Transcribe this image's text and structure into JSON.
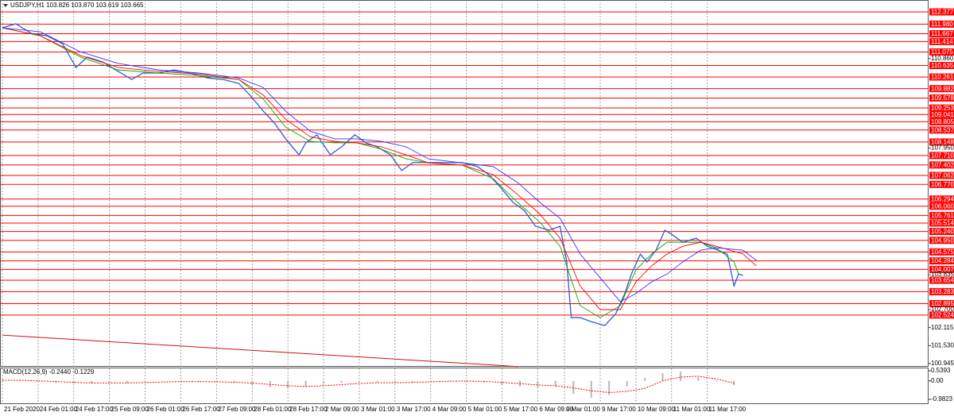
{
  "chart_data": [
    {
      "type": "line",
      "title": "USDJPY,H1 103.826 103.870 103.619 103.665",
      "xlim": [
        -1.07,
        415.2
      ],
      "ylim": [
        100.842,
        112.764
      ],
      "xticks": [
        {
          "value": 0,
          "label": "21 Feb 2020"
        },
        {
          "value": 16,
          "label": "24 Feb 01:00"
        },
        {
          "value": 32,
          "label": "24 Feb 17:00"
        },
        {
          "value": 48,
          "label": "25 Feb 09:00"
        },
        {
          "value": 64,
          "label": "26 Feb 01:00"
        },
        {
          "value": 80,
          "label": "26 Feb 17:00"
        },
        {
          "value": 96,
          "label": "27 Feb 09:00"
        },
        {
          "value": 112,
          "label": "28 Feb 01:00"
        },
        {
          "value": 128,
          "label": "28 Feb 17:00"
        },
        {
          "value": 144,
          "label": "2 Mar 09:00"
        },
        {
          "value": 160,
          "label": "3 Mar 01:00"
        },
        {
          "value": 176,
          "label": "3 Mar 17:00"
        },
        {
          "value": 192,
          "label": "4 Mar 09:00"
        },
        {
          "value": 208,
          "label": "5 Mar 01:00"
        },
        {
          "value": 224,
          "label": "5 Mar 17:00"
        },
        {
          "value": 240,
          "label": "6 Mar 09:00"
        },
        {
          "value": 252,
          "label": "9 Mar 01:00"
        },
        {
          "value": 268,
          "label": "9 Mar 17:00"
        },
        {
          "value": 284,
          "label": "10 Mar 09:00"
        },
        {
          "value": 300,
          "label": "11 Mar 01:00"
        },
        {
          "value": 316,
          "label": "11 Mar 17:00"
        }
      ],
      "yticks": [
        {
          "value": 110.86,
          "label": "110.860"
        },
        {
          "value": 107.95,
          "label": "107.950"
        },
        103.835,
        {
          "value": 102.7,
          "label": "102.700"
        },
        102.115,
        {
          "value": 101.53,
          "label": "101.530"
        },
        100.945
      ],
      "levels": [
        112.377,
        {
          "value": 111.98,
          "label": "111.980"
        },
        111.667,
        111.414,
        111.075,
        110.635,
        110.261,
        109.882,
        109.578,
        109.253,
        109.041,
        108.805,
        108.537,
        108.148,
        {
          "value": 107.71,
          "label": "107.710"
        },
        107.402,
        107.062,
        {
          "value": 106.77,
          "label": "106.770"
        },
        106.294,
        {
          "value": 106.06,
          "label": "106.060"
        },
        105.761,
        105.514,
        {
          "value": 105.24,
          "label": "105.240"
        },
        {
          "value": 104.95,
          "label": "104.950"
        },
        104.575,
        104.284,
        104.007,
        103.654,
        103.283,
        102.895,
        102.524
      ],
      "level_color": "#ff0000",
      "trendline": {
        "x": [
          0,
          231
        ],
        "values": [
          101.87,
          100.85
        ],
        "color": "#d01010"
      },
      "series": [
        {
          "color": "#2a5bd7",
          "x": [
            0,
            6,
            13,
            20,
            27,
            33,
            38,
            45,
            52,
            58,
            63,
            70,
            77,
            84,
            92,
            99,
            106,
            111,
            117,
            122,
            127,
            133,
            136,
            141,
            147,
            152,
            158,
            163,
            168,
            174,
            179,
            184,
            191,
            199,
            206,
            213,
            218,
            223,
            229,
            234,
            239,
            245,
            250,
            253,
            255,
            259,
            264,
            270,
            275,
            279,
            282,
            286,
            289,
            293,
            297,
            300,
            305,
            311,
            316,
            321,
            325,
            328,
            330,
            332
          ],
          "values": [
            111.86,
            111.99,
            111.68,
            111.6,
            111.34,
            110.57,
            110.91,
            110.75,
            110.44,
            110.18,
            110.39,
            110.39,
            110.49,
            110.39,
            110.23,
            110.18,
            110.05,
            109.67,
            109.15,
            108.76,
            108.25,
            107.73,
            108.12,
            108.38,
            107.73,
            107.99,
            108.38,
            108.12,
            107.99,
            107.73,
            107.22,
            107.48,
            107.48,
            107.48,
            107.48,
            107.35,
            107.09,
            106.7,
            106.18,
            105.92,
            105.41,
            105.28,
            105.41,
            104.25,
            102.44,
            102.44,
            102.31,
            102.18,
            102.57,
            103.22,
            103.86,
            104.5,
            104.25,
            104.63,
            105.28,
            105.15,
            104.89,
            105.02,
            104.76,
            104.63,
            104.5,
            103.47,
            103.86,
            103.81
          ]
        },
        {
          "color": "#00b000",
          "x": [
            0,
            17,
            35,
            52,
            70,
            88,
            106,
            117,
            127,
            138,
            149,
            159,
            170,
            181,
            191,
            206,
            220,
            231,
            241,
            250,
            259,
            268,
            277,
            284,
            291,
            298,
            305,
            313,
            320,
            328,
            330
          ],
          "values": [
            111.86,
            111.6,
            110.91,
            110.49,
            110.39,
            110.31,
            110.18,
            109.54,
            108.63,
            108.17,
            108.12,
            108.12,
            107.91,
            107.6,
            107.47,
            107.4,
            106.96,
            106.18,
            105.54,
            104.76,
            102.83,
            102.44,
            102.83,
            103.99,
            104.51,
            104.89,
            104.89,
            104.89,
            104.71,
            104.25,
            103.86
          ]
        },
        {
          "color": "#ff0000",
          "x": [
            0,
            17,
            35,
            52,
            70,
            88,
            106,
            117,
            127,
            138,
            149,
            159,
            170,
            181,
            191,
            206,
            220,
            231,
            241,
            250,
            259,
            268,
            277,
            284,
            291,
            298,
            305,
            313,
            320,
            332,
            338
          ],
          "values": [
            111.86,
            111.6,
            110.96,
            110.57,
            110.44,
            110.36,
            110.18,
            109.67,
            108.89,
            108.32,
            108.17,
            108.12,
            107.99,
            107.73,
            107.47,
            107.4,
            107.09,
            106.44,
            105.8,
            105.02,
            103.47,
            102.7,
            102.7,
            103.6,
            104.12,
            104.51,
            104.76,
            104.89,
            104.76,
            104.51,
            104.12
          ]
        },
        {
          "color": "#3030ff",
          "x": [
            0,
            17,
            35,
            52,
            70,
            88,
            106,
            117,
            127,
            138,
            149,
            159,
            170,
            181,
            191,
            206,
            220,
            231,
            241,
            250,
            259,
            268,
            277,
            284,
            291,
            298,
            305,
            313,
            320,
            332,
            338
          ],
          "values": [
            111.86,
            111.73,
            111.08,
            110.7,
            110.49,
            110.39,
            110.23,
            109.92,
            109.15,
            108.5,
            108.25,
            108.25,
            108.17,
            107.99,
            107.6,
            107.47,
            107.35,
            106.83,
            106.18,
            105.67,
            104.51,
            103.73,
            102.96,
            103.22,
            103.6,
            103.86,
            104.25,
            104.63,
            104.71,
            104.63,
            104.3
          ]
        }
      ]
    },
    {
      "type": "bar",
      "title": "MACD(12,26,9) -0.2440 -0.1229",
      "xlim": [
        -1.07,
        415.2
      ],
      "ylim": [
        -1.194,
        0.708
      ],
      "yticks": [
        0.5393,
        {
          "value": 0,
          "label": "0.00"
        },
        -0.9823
      ],
      "color": "#b8b8b8",
      "x": [
        0,
        8,
        16,
        24,
        32,
        40,
        48,
        56,
        64,
        72,
        80,
        88,
        96,
        104,
        112,
        120,
        128,
        136,
        144,
        152,
        160,
        168,
        176,
        184,
        192,
        200,
        208,
        216,
        224,
        232,
        240,
        248,
        256,
        264,
        272,
        280,
        288,
        296,
        304,
        312,
        320,
        328
      ],
      "values": [
        0.05,
        0.02,
        -0.05,
        -0.1,
        -0.15,
        -0.12,
        -0.1,
        -0.12,
        -0.05,
        0,
        -0.02,
        -0.05,
        -0.08,
        -0.1,
        -0.25,
        -0.35,
        -0.4,
        -0.3,
        -0.15,
        -0.1,
        -0.05,
        -0.08,
        -0.12,
        -0.05,
        0.02,
        0.03,
        0,
        -0.08,
        -0.2,
        -0.3,
        -0.35,
        -0.3,
        -0.7,
        -0.9,
        -0.75,
        -0.3,
        0.15,
        0.4,
        0.5,
        0.2,
        -0.05,
        -0.24
      ],
      "signal": {
        "color": "#ff0000",
        "values": [
          0.03,
          0.03,
          0,
          -0.04,
          -0.08,
          -0.11,
          -0.11,
          -0.11,
          -0.09,
          -0.06,
          -0.04,
          -0.04,
          -0.05,
          -0.07,
          -0.12,
          -0.19,
          -0.26,
          -0.3,
          -0.26,
          -0.2,
          -0.14,
          -0.1,
          -0.1,
          -0.08,
          -0.05,
          -0.02,
          -0.01,
          -0.03,
          -0.08,
          -0.15,
          -0.22,
          -0.26,
          -0.37,
          -0.53,
          -0.62,
          -0.56,
          -0.4,
          0,
          0.2,
          0.25,
          0.1,
          -0.12
        ]
      }
    }
  ]
}
